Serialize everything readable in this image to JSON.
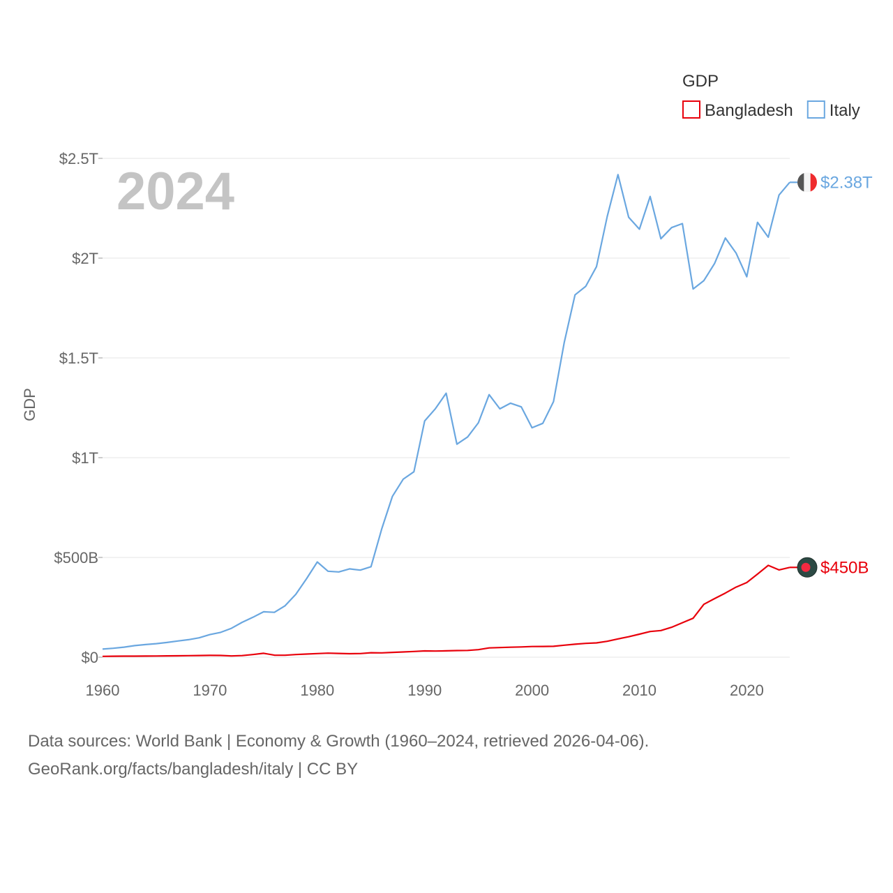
{
  "chart_data": {
    "type": "line",
    "year_label": "2024",
    "ylabel": "GDP",
    "ylim": [
      0,
      2500000000000
    ],
    "xlim": [
      1960,
      2024
    ],
    "y_ticks": [
      {
        "value": 0,
        "label": "$0"
      },
      {
        "value": 500000000000,
        "label": "$500B"
      },
      {
        "value": 1000000000000,
        "label": "$1T"
      },
      {
        "value": 1500000000000,
        "label": "$1.5T"
      },
      {
        "value": 2000000000000,
        "label": "$2T"
      },
      {
        "value": 2500000000000,
        "label": "$2.5T"
      }
    ],
    "x_ticks": [
      {
        "value": 1960,
        "label": "1960"
      },
      {
        "value": 1970,
        "label": "1970"
      },
      {
        "value": 1980,
        "label": "1980"
      },
      {
        "value": 1990,
        "label": "1990"
      },
      {
        "value": 2000,
        "label": "2000"
      },
      {
        "value": 2010,
        "label": "2010"
      },
      {
        "value": 2020,
        "label": "2020"
      }
    ],
    "legend": {
      "title": "GDP",
      "placement": "top-right"
    },
    "x": [
      1960,
      1961,
      1962,
      1963,
      1964,
      1965,
      1966,
      1967,
      1968,
      1969,
      1970,
      1971,
      1972,
      1973,
      1974,
      1975,
      1976,
      1977,
      1978,
      1979,
      1980,
      1981,
      1982,
      1983,
      1984,
      1985,
      1986,
      1987,
      1988,
      1989,
      1990,
      1991,
      1992,
      1993,
      1994,
      1995,
      1996,
      1997,
      1998,
      1999,
      2000,
      2001,
      2002,
      2003,
      2004,
      2005,
      2006,
      2007,
      2008,
      2009,
      2010,
      2011,
      2012,
      2013,
      2014,
      2015,
      2016,
      2017,
      2018,
      2019,
      2020,
      2021,
      2022,
      2023,
      2024
    ],
    "series": [
      {
        "name": "Bangladesh",
        "color": "#e8000b",
        "end_label": "$450B",
        "marker": "bangladesh-flag",
        "values": [
          4.3,
          4.8,
          5.1,
          5.4,
          5.6,
          6.1,
          6.5,
          7.1,
          7.6,
          8.5,
          9.0,
          8.8,
          6.3,
          8.1,
          13.3,
          19.5,
          10.1,
          9.7,
          13.3,
          15.6,
          18.1,
          20.2,
          18.8,
          17.6,
          18.2,
          22.3,
          21.8,
          24.1,
          26.2,
          28.5,
          31.6,
          30.9,
          31.7,
          33.2,
          33.8,
          37.9,
          46.4,
          48.2,
          50.0,
          51.3,
          53.4,
          54.0,
          54.7,
          60.2,
          65.1,
          69.4,
          71.8,
          79.6,
          91.6,
          102.5,
          115.3,
          128.6,
          133.4,
          149.9,
          172.9,
          195.1,
          265.2,
          293.8,
          321.4,
          351.2,
          374.0,
          416.3,
          460.2,
          437.4,
          450.1
        ]
      },
      {
        "name": "Italy",
        "color": "#6aa7e0",
        "end_label": "$2.38T",
        "marker": "italy-flag",
        "values": [
          40.4,
          44.8,
          50.4,
          58.0,
          63.2,
          67.8,
          73.7,
          81.0,
          87.9,
          97.1,
          113.4,
          124.5,
          144.8,
          174.9,
          199.9,
          227.7,
          224.9,
          257.6,
          314.9,
          393.5,
          477.3,
          430.7,
          427.2,
          442.6,
          436.5,
          453.6,
          643.4,
          806.3,
          892.1,
          929.3,
          1183.8,
          1245.4,
          1323.2,
          1067.6,
          1103.7,
          1174.7,
          1315.7,
          1244.6,
          1273.1,
          1254.5,
          1149.9,
          1172.2,
          1281.1,
          1577.8,
          1815.8,
          1858.6,
          1957.4,
          2209.2,
          2418.5,
          2205.0,
          2145.1,
          2309.2,
          2097.3,
          2153.1,
          2173.2,
          1845.4,
          1887.4,
          1973.3,
          2100.6,
          2025.9,
          1906.5,
          2179.2,
          2104.8,
          2316.2,
          2380.0
        ]
      }
    ]
  },
  "source": {
    "line1": "Data sources: World Bank | Economy & Growth (1960–2024, retrieved 2026-04-06).",
    "line2": "GeoRank.org/facts/bangladesh/italy | CC BY"
  }
}
